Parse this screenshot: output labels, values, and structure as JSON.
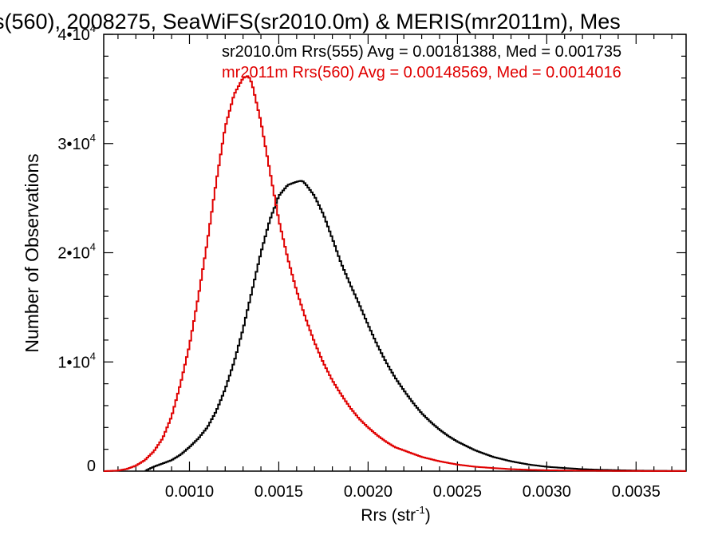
{
  "chart_data": {
    "type": "line",
    "title": "s(560), 2008275, SeaWiFS(sr2010.0m) & MERIS(mr2011m), Mes",
    "xlabel": "Rrs (str",
    "xlabel_sup": "-1",
    "xlabel_close": ")",
    "ylabel": "Number of Observations",
    "xlim": [
      0.00052,
      0.00378
    ],
    "ylim": [
      0,
      40000
    ],
    "x_ticks": [
      0.001,
      0.0015,
      0.002,
      0.0025,
      0.003,
      0.0035
    ],
    "x_tick_labels": [
      "0.0010",
      "0.0015",
      "0.0020",
      "0.0025",
      "0.0030",
      "0.0035"
    ],
    "y_ticks": [
      0,
      10000,
      20000,
      30000,
      40000
    ],
    "y_tick_labels": [
      {
        "base": "0",
        "exp": ""
      },
      {
        "base": "1•10",
        "exp": "4"
      },
      {
        "base": "2•10",
        "exp": "4"
      },
      {
        "base": "3•10",
        "exp": "4"
      },
      {
        "base": "4•10",
        "exp": "4"
      }
    ],
    "grid": false,
    "series": [
      {
        "name": "sr2010.0m Rrs(555)",
        "annotation": "sr2010.0m Rrs(555) Avg = 0.00181388, Med = 0.001735",
        "color": "#000000",
        "x": [
          0.00075,
          0.0008,
          0.00085,
          0.0009,
          0.00095,
          0.001,
          0.00105,
          0.0011,
          0.00115,
          0.0012,
          0.00125,
          0.0013,
          0.00135,
          0.0014,
          0.00145,
          0.0015,
          0.00155,
          0.0016,
          0.00163,
          0.00165,
          0.0017,
          0.00175,
          0.0018,
          0.00185,
          0.0019,
          0.00195,
          0.002,
          0.00205,
          0.0021,
          0.00215,
          0.0022,
          0.00225,
          0.0023,
          0.00235,
          0.0024,
          0.00245,
          0.0025,
          0.0026,
          0.0027,
          0.0028,
          0.0029,
          0.003,
          0.0031,
          0.0032,
          0.0033,
          0.0034,
          0.0035,
          0.0036,
          0.0037,
          0.00378
        ],
        "y": [
          0,
          400,
          700,
          1000,
          1500,
          2200,
          3000,
          4000,
          5500,
          7500,
          10000,
          13000,
          16500,
          20000,
          23000,
          25200,
          26200,
          26500,
          26600,
          26300,
          25200,
          23500,
          21300,
          19000,
          17100,
          15300,
          13400,
          11600,
          10000,
          8600,
          7400,
          6300,
          5300,
          4500,
          3800,
          3200,
          2700,
          1900,
          1300,
          900,
          600,
          400,
          280,
          180,
          120,
          80,
          50,
          30,
          20,
          10
        ]
      },
      {
        "name": "mr2011m Rrs(560)",
        "annotation": "mr2011m Rrs(560) Avg = 0.00148569, Med = 0.0014016",
        "color": "#e00000",
        "x": [
          0.00052,
          0.0006,
          0.00065,
          0.0007,
          0.00075,
          0.0008,
          0.00085,
          0.0009,
          0.00095,
          0.001,
          0.00105,
          0.0011,
          0.00115,
          0.0012,
          0.00125,
          0.0013,
          0.00133,
          0.00135,
          0.0014,
          0.00145,
          0.0015,
          0.00155,
          0.0016,
          0.00165,
          0.0017,
          0.00175,
          0.0018,
          0.00185,
          0.0019,
          0.00195,
          0.002,
          0.00205,
          0.0021,
          0.00215,
          0.0022,
          0.0023,
          0.0024,
          0.0025,
          0.0026,
          0.0027,
          0.0028,
          0.0029,
          0.003,
          0.0032,
          0.0034,
          0.0036,
          0.00378
        ],
        "y": [
          0,
          50,
          200,
          500,
          1000,
          1800,
          3000,
          5000,
          8000,
          11500,
          16000,
          21000,
          26500,
          31500,
          34500,
          36000,
          36200,
          35500,
          32000,
          27500,
          23000,
          19500,
          16500,
          14000,
          11800,
          9900,
          8300,
          7000,
          5800,
          4800,
          4000,
          3300,
          2700,
          2200,
          1900,
          1300,
          900,
          600,
          400,
          280,
          180,
          120,
          80,
          40,
          20,
          10,
          5
        ]
      }
    ]
  }
}
